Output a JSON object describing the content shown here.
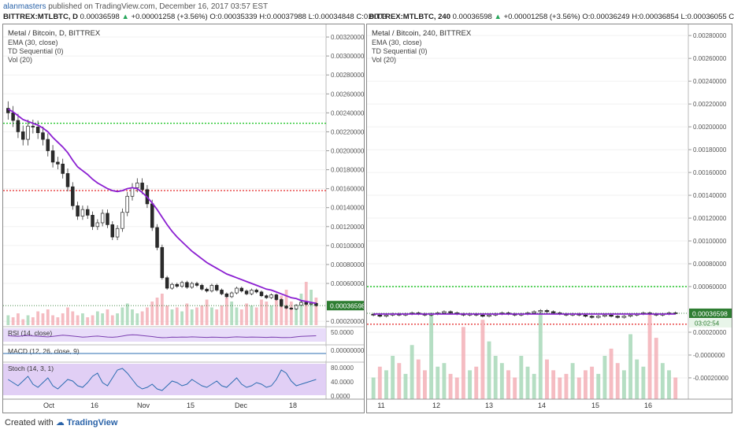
{
  "header": {
    "author": "alanmasters",
    "published_text": " published on TradingView.com, December 16, 2017 03:57 EST",
    "left_ticker": "BITTREX:MTLBTC, D",
    "left_close": "0.00036598",
    "left_change": "+0.00001258 (+3.56%)",
    "left_ohlc": "O:0.00035339  H:0.00037988  L:0.00034848  C:0.0003",
    "right_ticker": "BITTREX:MTLBTC, 240",
    "right_close": "0.00036598",
    "right_change": "+0.00001258 (+3.56%)",
    "right_ohlc": "O:0.00036249  H:0.00036854  L:0.00036055  C:0.000"
  },
  "footer": {
    "created_with": "Created with",
    "brand": "TradingView"
  },
  "colors": {
    "up": "#26a65b",
    "down": "#e0414d",
    "ema": "#8b1fd1",
    "green_line": "#22c52a",
    "red_line": "#e63a3a",
    "price_tag": "#2e7d32",
    "rsi_bg": "#e2d3f7",
    "stoch_bg": "#d9c3f3"
  },
  "chart_data": [
    {
      "type": "candlestick",
      "title": "Metal / Bitcoin, D, BITTREX",
      "indicators": [
        "EMA (30, close)",
        "TD Sequential (0)",
        "Vol (20)"
      ],
      "x_ticks": [
        "Oct",
        "16",
        "Nov",
        "15",
        "Dec",
        "18"
      ],
      "y_ticks": [
        "0.00320000",
        "0.00300000",
        "0.00280000",
        "0.00260000",
        "0.00240000",
        "0.00220000",
        "0.00200000",
        "0.00180000",
        "0.00160000",
        "0.00140000",
        "0.00120000",
        "0.00100000",
        "0.00080000",
        "0.00060000",
        "0.00036598",
        "0.00020000"
      ],
      "ylim": [
        0.00016,
        0.0033
      ],
      "last_price": "0.00036598",
      "horizontal_lines": {
        "green": 0.00229,
        "red": 0.00158
      },
      "close": [
        0.0024,
        0.00232,
        0.0022,
        0.00212,
        0.00226,
        0.00225,
        0.00219,
        0.00212,
        0.002,
        0.00188,
        0.00186,
        0.00176,
        0.00162,
        0.00142,
        0.00131,
        0.00138,
        0.00132,
        0.0012,
        0.00124,
        0.00134,
        0.00122,
        0.00109,
        0.00118,
        0.00135,
        0.00152,
        0.00161,
        0.00166,
        0.00159,
        0.00144,
        0.00119,
        0.00098,
        0.00066,
        0.00055,
        0.00059,
        0.00057,
        0.00061,
        0.00056,
        0.0006,
        0.00058,
        0.00054,
        0.00052,
        0.00058,
        0.00053,
        0.00049,
        0.00046,
        0.0005,
        0.00055,
        0.00052,
        0.00049,
        0.00053,
        0.00051,
        0.00047,
        0.00045,
        0.00048,
        0.00043,
        0.00036,
        0.00034,
        0.00033,
        0.00037,
        0.0004,
        0.00038,
        0.00039,
        0.00036598
      ],
      "ema_30": [
        0.00244,
        0.00241,
        0.00237,
        0.00233,
        0.00231,
        0.00229,
        0.00227,
        0.00224,
        0.0022,
        0.00214,
        0.00209,
        0.00204,
        0.00198,
        0.0019,
        0.00183,
        0.00179,
        0.00175,
        0.0017,
        0.00166,
        0.00163,
        0.0016,
        0.00158,
        0.00157,
        0.00158,
        0.0016,
        0.00161,
        0.0016,
        0.00156,
        0.00151,
        0.00145,
        0.00138,
        0.0013,
        0.00122,
        0.00115,
        0.00109,
        0.00104,
        0.00099,
        0.00094,
        0.0009,
        0.00086,
        0.00082,
        0.00079,
        0.00076,
        0.00073,
        0.0007,
        0.00068,
        0.00066,
        0.00064,
        0.00062,
        0.0006,
        0.00058,
        0.00056,
        0.00054,
        0.00053,
        0.00051,
        0.00049,
        0.00047,
        0.00045,
        0.00044,
        0.00042,
        0.00041,
        0.0004,
        0.00039
      ],
      "volume": [
        5,
        4,
        6,
        3,
        5,
        4,
        7,
        6,
        8,
        5,
        4,
        6,
        9,
        7,
        5,
        6,
        4,
        5,
        7,
        6,
        8,
        5,
        6,
        9,
        11,
        8,
        6,
        7,
        9,
        12,
        14,
        16,
        10,
        8,
        9,
        7,
        11,
        8,
        9,
        10,
        13,
        9,
        8,
        10,
        14,
        12,
        9,
        8,
        11,
        10,
        9,
        13,
        12,
        10,
        14,
        15,
        18,
        12,
        10,
        16,
        22,
        18,
        14
      ],
      "panes": [
        {
          "name": "RSI (14, close)",
          "ticks": [
            "50.0000"
          ],
          "values": [
            45,
            42,
            40,
            44,
            46,
            43,
            41,
            38,
            36,
            40,
            44,
            48,
            46,
            42,
            38,
            34,
            36,
            40,
            42,
            38,
            35,
            33,
            36,
            42,
            48,
            52,
            50,
            46,
            42,
            38,
            33,
            30,
            31,
            34,
            33,
            35,
            34,
            36,
            35,
            33,
            32,
            34,
            33,
            32,
            31,
            34,
            36,
            35,
            33,
            35,
            34,
            33,
            32,
            34,
            33,
            31,
            31,
            32,
            36,
            40,
            41,
            43,
            44
          ]
        },
        {
          "name": "MACD (12, 26, close, 9)",
          "ticks": [
            "0.00000000"
          ],
          "values": [
            0
          ]
        },
        {
          "name": "Stoch (14, 3, 1)",
          "ticks": [
            "80.0000",
            "40.0000",
            "0.0000"
          ],
          "values": [
            50,
            40,
            30,
            45,
            60,
            35,
            25,
            40,
            55,
            30,
            20,
            35,
            50,
            45,
            30,
            25,
            40,
            60,
            70,
            40,
            30,
            55,
            80,
            85,
            70,
            50,
            30,
            20,
            25,
            35,
            20,
            15,
            30,
            45,
            40,
            30,
            35,
            50,
            40,
            30,
            25,
            35,
            45,
            30,
            25,
            40,
            55,
            35,
            25,
            30,
            40,
            35,
            25,
            30,
            50,
            80,
            70,
            45,
            30,
            35,
            40,
            45,
            50
          ]
        }
      ]
    },
    {
      "type": "candlestick",
      "title": "Metal / Bitcoin, 240, BITTREX",
      "indicators": [
        "EMA (30, close)",
        "TD Sequential (0)",
        "Vol (20)"
      ],
      "x_ticks": [
        "11",
        "12",
        "13",
        "14",
        "15",
        "16"
      ],
      "y_ticks": [
        "0.00280000",
        "0.00260000",
        "0.00240000",
        "0.00220000",
        "0.00200000",
        "0.00180000",
        "0.00160000",
        "0.00140000",
        "0.00120000",
        "0.00100000",
        "0.00080000",
        "0.00060000",
        "0.00036598",
        "0.00020000",
        "-0.0000000",
        "-0.00020000"
      ],
      "ylim": [
        -0.00029,
        0.00287
      ],
      "last_price": "0.00036598",
      "countdown": "03:02:54",
      "horizontal_lines": {
        "green": 0.0006,
        "red": 0.00027
      },
      "close": [
        0.00035,
        0.00034,
        0.00035,
        0.00036,
        0.00035,
        0.00036,
        0.00037,
        0.00036,
        0.00035,
        0.00036,
        0.00037,
        0.00038,
        0.00037,
        0.00036,
        0.00035,
        0.00036,
        0.00035,
        0.00034,
        0.00035,
        0.00036,
        0.00037,
        0.00036,
        0.00035,
        0.00036,
        0.00037,
        0.00038,
        0.00039,
        0.00038,
        0.00037,
        0.00036,
        0.00035,
        0.00036,
        0.00035,
        0.00034,
        0.00033,
        0.00034,
        0.00035,
        0.00034,
        0.00033,
        0.00034,
        0.00035,
        0.00036,
        0.00037,
        0.00036,
        0.00035,
        0.00036,
        0.00037,
        0.00036598
      ],
      "volume": [
        6,
        9,
        8,
        12,
        10,
        7,
        15,
        11,
        8,
        24,
        9,
        10,
        7,
        6,
        20,
        8,
        9,
        22,
        16,
        12,
        10,
        8,
        6,
        12,
        9,
        7,
        24,
        11,
        8,
        6,
        7,
        10,
        6,
        8,
        9,
        7,
        12,
        14,
        10,
        8,
        18,
        11,
        9,
        24,
        17,
        10,
        8,
        6
      ]
    }
  ]
}
